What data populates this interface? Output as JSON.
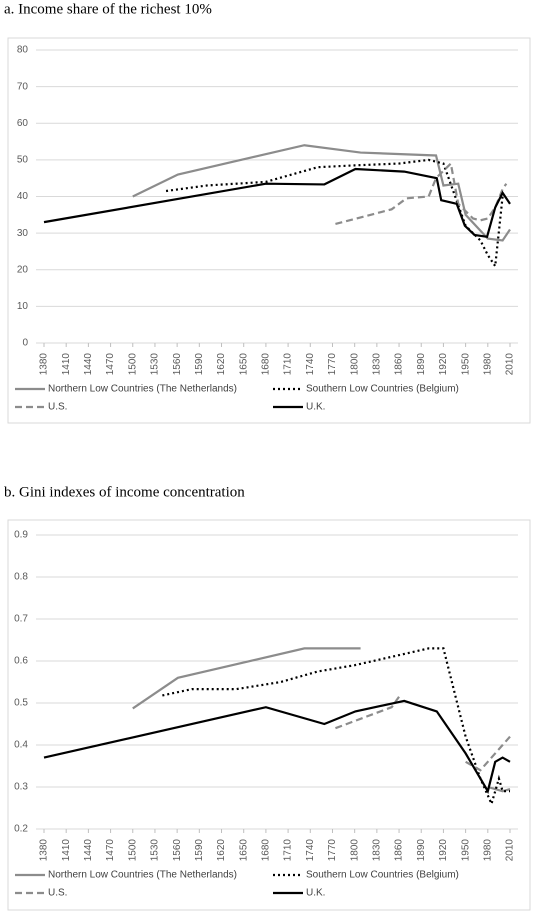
{
  "chart_data": [
    {
      "type": "line",
      "title": "a. Income share of the richest 10%",
      "xlim": [
        1380,
        2010
      ],
      "xticks": [
        1380,
        1410,
        1440,
        1470,
        1500,
        1530,
        1560,
        1590,
        1620,
        1650,
        1680,
        1710,
        1740,
        1770,
        1800,
        1830,
        1860,
        1890,
        1920,
        1950,
        1980,
        2010
      ],
      "ylim": [
        0,
        80
      ],
      "yticks": [
        0,
        10,
        20,
        30,
        40,
        50,
        60,
        70,
        80
      ],
      "grid": true,
      "legend": "bottom",
      "series": [
        {
          "name": "Northern Low Countries (The Netherlands)",
          "color": "#8c8c8c",
          "dash": "solid",
          "x": [
            1500,
            1561,
            1732,
            1808,
            1910,
            1920,
            1940,
            1950,
            1980,
            2000,
            2010
          ],
          "values": [
            40,
            46,
            54,
            52,
            51.2,
            43,
            43.5,
            35,
            28.5,
            28,
            31
          ]
        },
        {
          "name": "Southern Low Countries (Belgium)",
          "color": "#000000",
          "dash": "dotted",
          "x": [
            1545,
            1600,
            1680,
            1750,
            1800,
            1860,
            1900,
            1920,
            1950,
            1970,
            1980,
            1990,
            2000
          ],
          "values": [
            41.5,
            43,
            44,
            48,
            48.5,
            49,
            50,
            49,
            32,
            28,
            24,
            21,
            40
          ]
        },
        {
          "name": "U.S.",
          "color": "#8c8c8c",
          "dash": "dashed",
          "x": [
            1774,
            1850,
            1870,
            1900,
            1910,
            1920,
            1930,
            1940,
            1960,
            1970,
            1980,
            1990,
            2000,
            2005
          ],
          "values": [
            32.5,
            36.5,
            39.5,
            40,
            45,
            47,
            49,
            38,
            34,
            33.5,
            34,
            37,
            42,
            43.5
          ]
        },
        {
          "name": "U.K.",
          "color": "#000000",
          "dash": "solid",
          "x": [
            1380,
            1680,
            1759,
            1801,
            1867,
            1911,
            1917,
            1938,
            1949,
            1962,
            1979,
            1990,
            2000,
            2010
          ],
          "values": [
            33,
            43.5,
            43.3,
            47.5,
            46.8,
            45,
            39,
            38,
            32,
            29.5,
            29,
            37,
            41,
            38
          ]
        }
      ]
    },
    {
      "type": "line",
      "title": "b. Gini indexes of income concentration",
      "xlim": [
        1380,
        2010
      ],
      "xticks": [
        1380,
        1410,
        1440,
        1470,
        1500,
        1530,
        1560,
        1590,
        1620,
        1650,
        1680,
        1710,
        1740,
        1770,
        1800,
        1830,
        1860,
        1890,
        1920,
        1950,
        1980,
        2010
      ],
      "ylim": [
        0.2,
        0.9
      ],
      "yticks": [
        0.2,
        0.3,
        0.4,
        0.5,
        0.6,
        0.7,
        0.8,
        0.9
      ],
      "grid": true,
      "legend": "bottom",
      "series": [
        {
          "name": "Northern Low Countries (The Netherlands)",
          "color": "#8c8c8c",
          "dash": "solid",
          "x": [
            1500,
            1561,
            1732,
            1808,
            1900,
            1980,
            2000,
            2010
          ],
          "values": [
            0.487,
            0.56,
            0.63,
            0.63,
            null,
            0.3,
            0.29,
            0.295
          ]
        },
        {
          "name": "Southern Low Countries (Belgium)",
          "color": "#000000",
          "dash": "dotted",
          "x": [
            1540,
            1580,
            1640,
            1700,
            1750,
            1800,
            1850,
            1900,
            1920,
            1950,
            1970,
            1985,
            1995,
            2000,
            2010
          ],
          "values": [
            0.518,
            0.533,
            0.533,
            0.55,
            0.575,
            0.59,
            0.61,
            0.63,
            0.63,
            0.42,
            0.32,
            0.26,
            0.32,
            0.29,
            0.29
          ]
        },
        {
          "name": "U.S.",
          "color": "#8c8c8c",
          "dash": "dashed",
          "x": [
            1774,
            1850,
            1860,
            1900,
            1950,
            1970,
            1980,
            2000,
            2010
          ],
          "values": [
            0.44,
            0.49,
            0.515,
            null,
            0.36,
            0.34,
            0.36,
            0.4,
            0.42
          ]
        },
        {
          "name": "U.K.",
          "color": "#000000",
          "dash": "solid",
          "x": [
            1380,
            1680,
            1759,
            1801,
            1867,
            1911,
            1950,
            1970,
            1980,
            1990,
            2000,
            2010
          ],
          "values": [
            0.37,
            0.49,
            0.45,
            0.48,
            0.505,
            0.48,
            0.38,
            0.32,
            0.29,
            0.36,
            0.37,
            0.36
          ]
        }
      ]
    }
  ]
}
